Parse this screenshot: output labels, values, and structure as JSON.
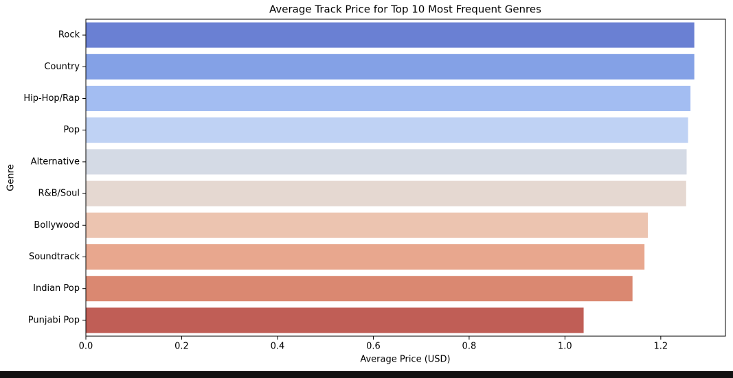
{
  "chart_data": {
    "type": "bar",
    "orientation": "horizontal",
    "title": "Average Track Price for Top 10 Most Frequent Genres",
    "xlabel": "Average Price (USD)",
    "ylabel": "Genre",
    "categories": [
      "Rock",
      "Country",
      "Hip-Hop/Rap",
      "Pop",
      "Alternative",
      "R&B/Soul",
      "Bollywood",
      "Soundtrack",
      "Indian Pop",
      "Punjabi Pop"
    ],
    "values": [
      1.27,
      1.27,
      1.262,
      1.257,
      1.254,
      1.253,
      1.173,
      1.166,
      1.141,
      1.039
    ],
    "colors": [
      "#6a80d3",
      "#84a1e6",
      "#a3bdf2",
      "#bfd2f4",
      "#d4dae5",
      "#e5d8d1",
      "#ecc4b0",
      "#e8a78e",
      "#da8871",
      "#c05e56"
    ],
    "xlim": [
      0,
      1.335
    ],
    "xticks": [
      {
        "value": 0,
        "label": "0.0"
      },
      0.2,
      0.4,
      0.6,
      0.8,
      {
        "value": 1,
        "label": "1.0"
      },
      1.2
    ]
  }
}
